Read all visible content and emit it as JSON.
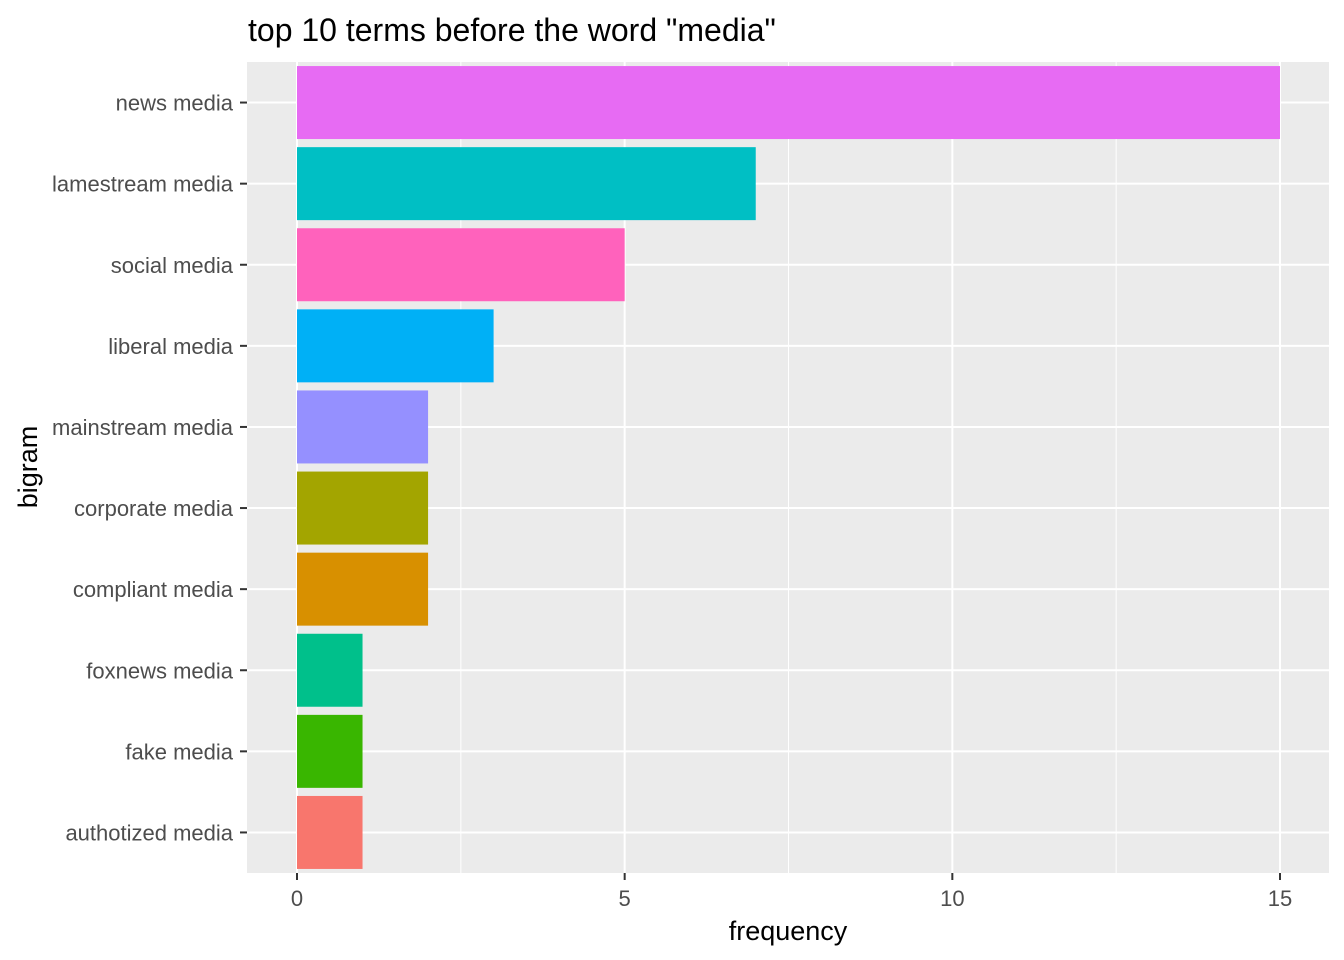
{
  "chart_data": {
    "type": "bar",
    "orientation": "horizontal",
    "title": "top 10 terms before the word \"media\"",
    "xlabel": "frequency",
    "ylabel": "bigram",
    "xlim": [
      0,
      15
    ],
    "x_ticks": [
      0,
      5,
      10,
      15
    ],
    "grid": true,
    "background": "#EBEBEB",
    "categories": [
      "news media",
      "lamestream media",
      "social media",
      "liberal media",
      "mainstream media",
      "corporate media",
      "compliant media",
      "foxnews media",
      "fake media",
      "authotized media"
    ],
    "values": [
      15,
      7,
      5,
      3,
      2,
      2,
      2,
      1,
      1,
      1
    ],
    "colors": [
      "#E76BF3",
      "#00BFC4",
      "#FF62BC",
      "#00B0F6",
      "#9590FF",
      "#A3A500",
      "#D89000",
      "#00C08B",
      "#39B600",
      "#F8766D"
    ]
  }
}
